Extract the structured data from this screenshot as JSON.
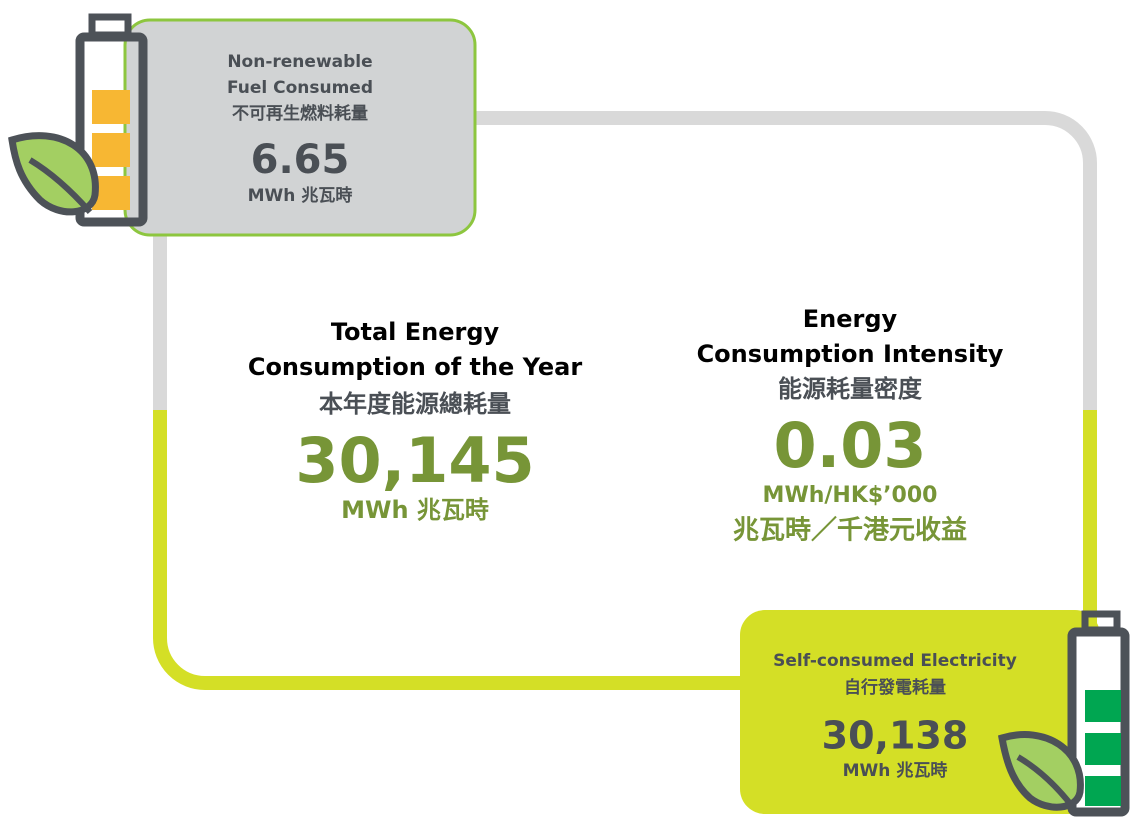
{
  "fuel": {
    "title_lines": [
      "Non-renewable",
      "Fuel Consumed"
    ],
    "title_zh": "不可再生燃料耗量",
    "value": "6.65",
    "unit": "MWh 兆瓦時"
  },
  "total": {
    "title_lines": [
      "Total Energy",
      "Consumption of the Year"
    ],
    "title_zh": "本年度能源總耗量",
    "value": "30,145",
    "unit": "MWh 兆瓦時"
  },
  "intensity": {
    "title_lines": [
      "Energy",
      "Consumption Intensity"
    ],
    "title_zh": "能源耗量密度",
    "value": "0.03",
    "unit": "MWh/HK$’000",
    "unit_zh": "兆瓦時／千港元收益"
  },
  "electricity": {
    "title": "Self-consumed Electricity",
    "title_zh": "自行發電耗量",
    "value": "30,138",
    "unit": "MWh 兆瓦時"
  }
}
